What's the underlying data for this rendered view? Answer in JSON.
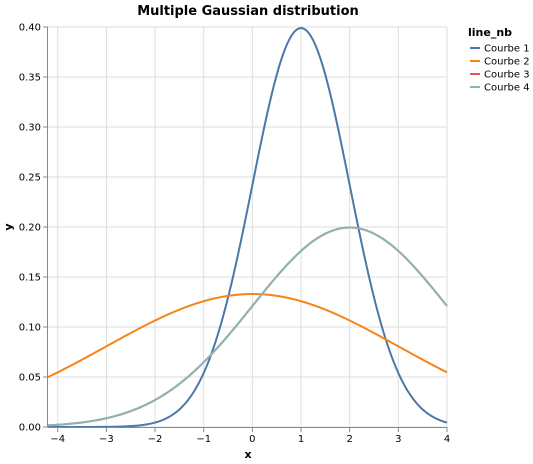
{
  "chart_data": {
    "type": "line",
    "title": "Multiple Gaussian distribution",
    "xlabel": "x",
    "ylabel": "y",
    "xlim": [
      -4.2,
      4
    ],
    "ylim": [
      0,
      0.4
    ],
    "x_ticks": [
      -4,
      -3,
      -2,
      -1,
      0,
      1,
      2,
      3,
      4
    ],
    "y_ticks": [
      0.0,
      0.05,
      0.1,
      0.15,
      0.2,
      0.25,
      0.3,
      0.35,
      0.4
    ],
    "x_tick_labels": [
      "−4",
      "−3",
      "−2",
      "−1",
      "0",
      "1",
      "2",
      "3",
      "4"
    ],
    "y_tick_labels": [
      "0.00",
      "0.05",
      "0.10",
      "0.15",
      "0.20",
      "0.25",
      "0.30",
      "0.35",
      "0.40"
    ],
    "grid": true,
    "legend": {
      "title": "line_nb",
      "position": "right"
    },
    "series": [
      {
        "name": "Courbe 1",
        "color": "#4c78a8",
        "mean": 1,
        "sd": 1,
        "x": [
          -4.2,
          -3,
          -2,
          -1,
          0,
          0.5,
          1,
          1.5,
          2,
          3,
          4
        ],
        "y": [
          0.0,
          0.0001,
          0.0044,
          0.054,
          0.242,
          0.352,
          0.399,
          0.352,
          0.242,
          0.054,
          0.0044
        ]
      },
      {
        "name": "Courbe 2",
        "color": "#f58518",
        "mean": 0,
        "sd": 3,
        "x": [
          -4.2,
          -3,
          -2,
          -1,
          0,
          1,
          2,
          3,
          4
        ],
        "y": [
          0.0502,
          0.0807,
          0.1065,
          0.1258,
          0.133,
          0.1258,
          0.1065,
          0.0807,
          0.0547
        ]
      },
      {
        "name": "Courbe 3",
        "color": "#e45756",
        "mean": 2,
        "sd": 2,
        "x": [
          -4.2,
          -3,
          -2,
          -1,
          0,
          1,
          2,
          3,
          4
        ],
        "y": [
          0.0027,
          0.0088,
          0.027,
          0.0648,
          0.121,
          0.176,
          0.1995,
          0.176,
          0.121
        ]
      },
      {
        "name": "Courbe 4",
        "color": "#8ab6b0",
        "mean": 2,
        "sd": 2,
        "x": [
          -4.2,
          -3,
          -2,
          -1,
          0,
          1,
          2,
          3,
          4
        ],
        "y": [
          0.0027,
          0.0088,
          0.027,
          0.0648,
          0.121,
          0.176,
          0.1995,
          0.176,
          0.121
        ]
      }
    ]
  }
}
